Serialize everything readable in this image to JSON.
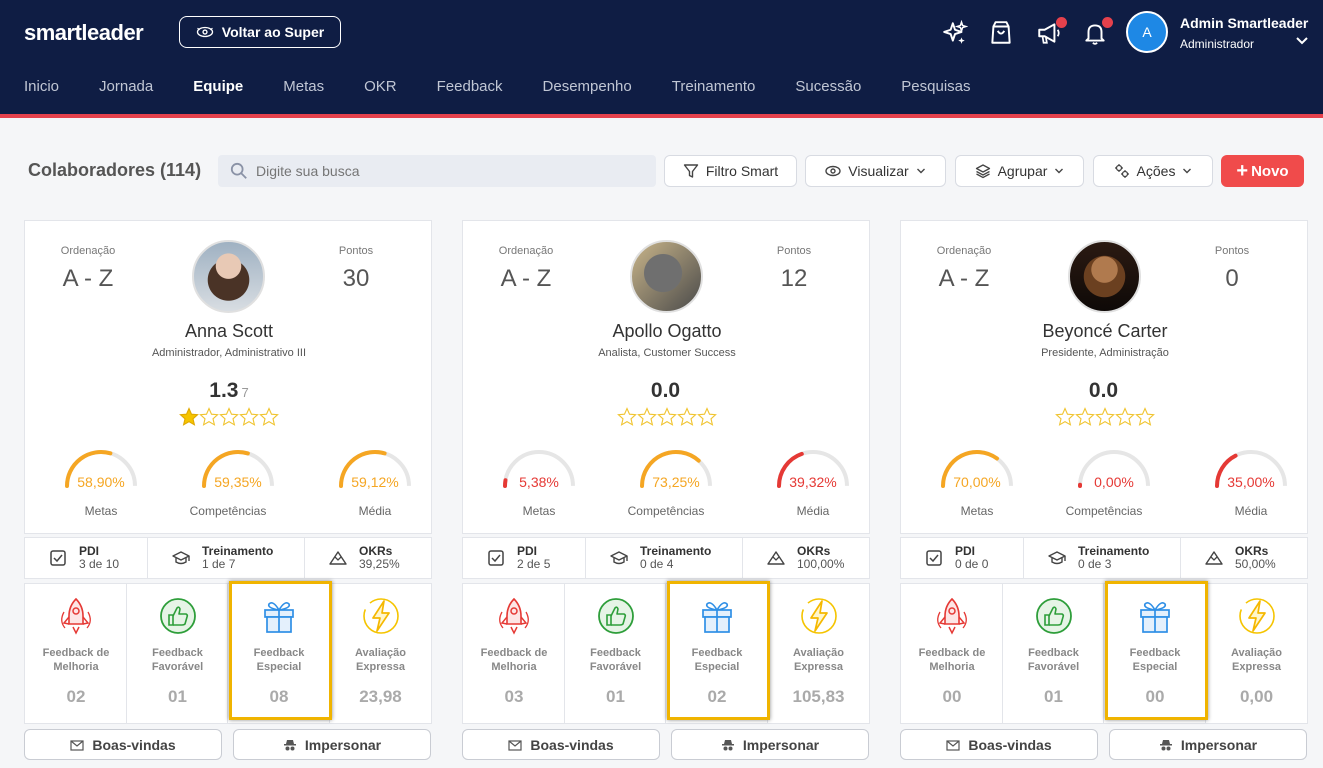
{
  "header": {
    "logo": "smartleader",
    "back_label": "Voltar ao Super",
    "user_initial": "A",
    "user_name": "Admin Smartleader",
    "user_role": "Administrador",
    "nav": [
      "Inicio",
      "Jornada",
      "Equipe",
      "Metas",
      "OKR",
      "Feedback",
      "Desempenho",
      "Treinamento",
      "Sucessão",
      "Pesquisas"
    ],
    "nav_active": "Equipe"
  },
  "toolbar": {
    "title": "Colaboradores (114)",
    "search_placeholder": "Digite sua busca",
    "filtro": "Filtro Smart",
    "visualizar": "Visualizar",
    "agrupar": "Agrupar",
    "acoes": "Ações",
    "novo": "Novo"
  },
  "labels": {
    "ordenacao": "Ordenação",
    "pontos": "Pontos",
    "metas": "Metas",
    "competencias": "Competências",
    "media": "Média",
    "pdi": "PDI",
    "treinamento": "Treinamento",
    "okrs": "OKRs",
    "fb_melhoria": [
      "Feedback de",
      "Melhoria"
    ],
    "fb_favoravel": [
      "Feedback",
      "Favorável"
    ],
    "fb_especial": [
      "Feedback",
      "Especial"
    ],
    "fb_expressa": [
      "Avaliação",
      "Expressa"
    ],
    "boas_vindas": "Boas-vindas",
    "impersonar": "Impersonar"
  },
  "colors": {
    "orange": "#f5a623",
    "red": "#e53935",
    "navy": "#0f1d44",
    "accent": "#f04b4b",
    "highlight": "#f0b400"
  },
  "cards": [
    {
      "ordenacao": "A - Z",
      "pontos": "30",
      "name": "Anna Scott",
      "role": "Administrador, Administrativo III",
      "score": "1.3",
      "score_count": "7",
      "stars": 1,
      "metas": {
        "text": "58,90%",
        "value": 58.9,
        "color": "orange"
      },
      "competencias": {
        "text": "59,35%",
        "value": 59.35,
        "color": "orange"
      },
      "media": {
        "text": "59,12%",
        "value": 59.12,
        "color": "orange"
      },
      "pdi": "3 de 10",
      "treinamento": "1 de 7",
      "okrs": "39,25%",
      "fb_melhoria": "02",
      "fb_favoravel": "01",
      "fb_especial": "08",
      "fb_expressa": "23,98"
    },
    {
      "ordenacao": "A - Z",
      "pontos": "12",
      "name": "Apollo Ogatto",
      "role": "Analista, Customer Success",
      "score": "0.0",
      "score_count": "",
      "stars": 0,
      "metas": {
        "text": "5,38%",
        "value": 5.38,
        "color": "red"
      },
      "competencias": {
        "text": "73,25%",
        "value": 73.25,
        "color": "orange"
      },
      "media": {
        "text": "39,32%",
        "value": 39.32,
        "color": "red"
      },
      "pdi": "2 de 5",
      "treinamento": "0 de 4",
      "okrs": "100,00%",
      "fb_melhoria": "03",
      "fb_favoravel": "01",
      "fb_especial": "02",
      "fb_expressa": "105,83"
    },
    {
      "ordenacao": "A - Z",
      "pontos": "0",
      "name": "Beyoncé Carter",
      "role": "Presidente, Administração",
      "score": "0.0",
      "score_count": "",
      "stars": 0,
      "metas": {
        "text": "70,00%",
        "value": 70,
        "color": "orange"
      },
      "competencias": {
        "text": "0,00%",
        "value": 0,
        "color": "red"
      },
      "media": {
        "text": "35,00%",
        "value": 35,
        "color": "red"
      },
      "pdi": "0 de 0",
      "treinamento": "0 de 3",
      "okrs": "50,00%",
      "fb_melhoria": "00",
      "fb_favoravel": "01",
      "fb_especial": "00",
      "fb_expressa": "0,00"
    }
  ]
}
